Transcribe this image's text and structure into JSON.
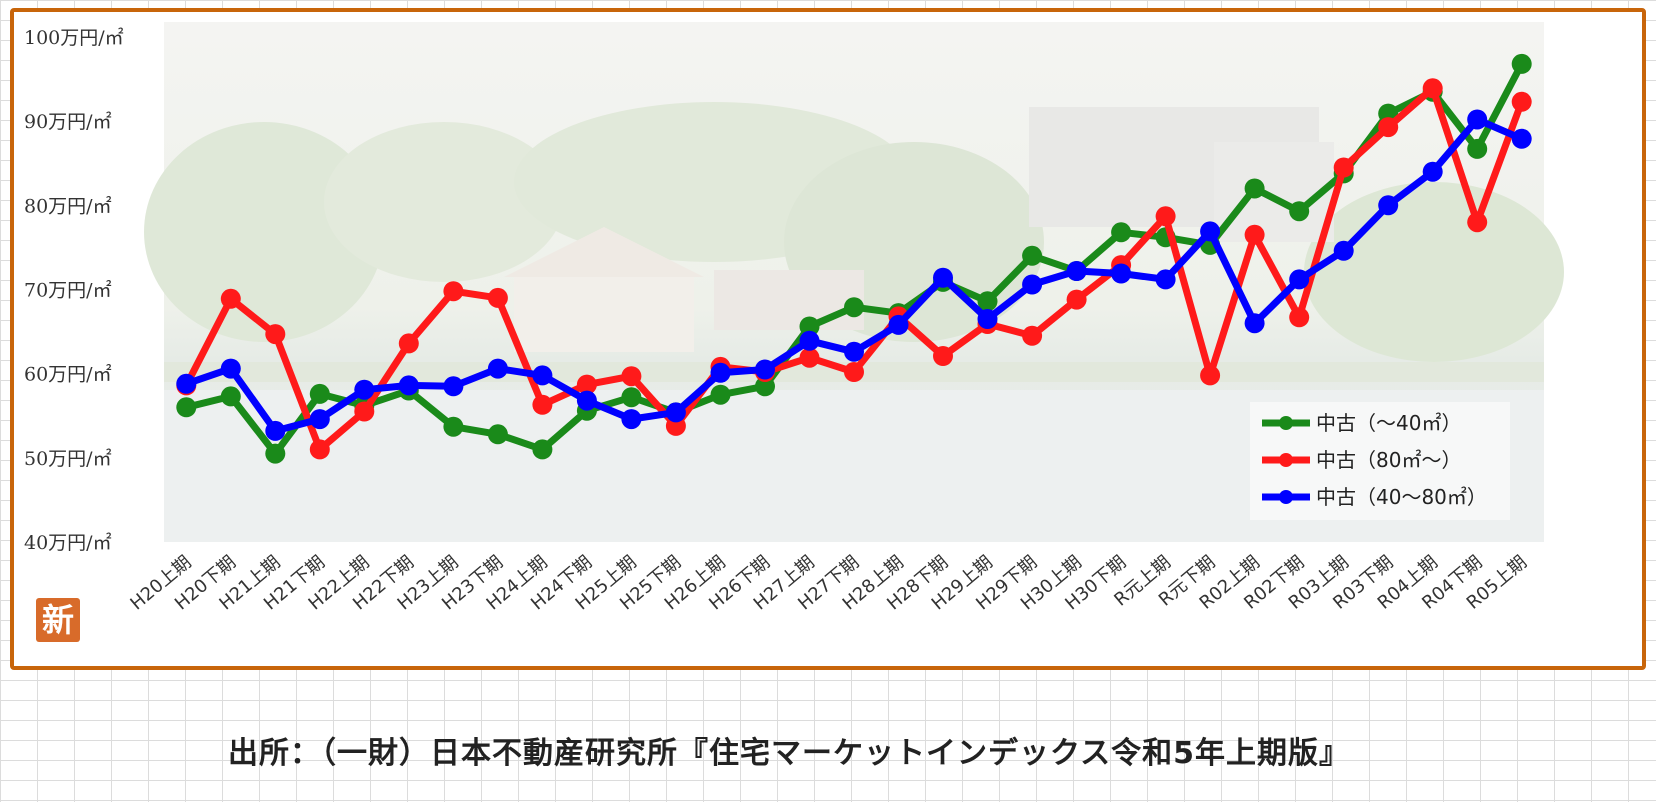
{
  "chart_data": {
    "type": "line",
    "y_unit_suffix": "万円/㎡",
    "ylim": [
      40,
      100
    ],
    "yticks": [
      40,
      50,
      60,
      70,
      80,
      90,
      100
    ],
    "ytick_labels": [
      "40万円/㎡",
      "50万円/㎡",
      "60万円/㎡",
      "70万円/㎡",
      "80万円/㎡",
      "90万円/㎡",
      "100万円/㎡"
    ],
    "categories": [
      "H20上期",
      "H20下期",
      "H21上期",
      "H21下期",
      "H22上期",
      "H22下期",
      "H23上期",
      "H23下期",
      "H24上期",
      "H24下期",
      "H25上期",
      "H25下期",
      "H26上期",
      "H26下期",
      "H27上期",
      "H27下期",
      "H28上期",
      "H28下期",
      "H29上期",
      "H29下期",
      "H30上期",
      "H30下期",
      "R元上期",
      "R元下期",
      "R02上期",
      "R02下期",
      "R03上期",
      "R03下期",
      "R04上期",
      "R04下期",
      "R05上期"
    ],
    "series": [
      {
        "name": "中古（～40㎡）",
        "color": "#1a8a1a",
        "values": [
          56.0,
          57.3,
          50.5,
          57.6,
          56.2,
          58.0,
          53.7,
          52.8,
          51.0,
          55.6,
          57.2,
          55.4,
          57.5,
          58.5,
          65.6,
          67.9,
          67.2,
          70.9,
          68.6,
          74.0,
          72.2,
          76.8,
          76.2,
          75.3,
          82.0,
          79.3,
          83.8,
          90.9,
          93.5,
          86.7,
          96.8
        ]
      },
      {
        "name": "中古（80㎡～）",
        "color": "#ff1a1a",
        "values": [
          58.6,
          68.9,
          64.7,
          51.0,
          55.5,
          63.6,
          69.8,
          69.0,
          56.3,
          58.7,
          59.7,
          53.8,
          60.8,
          60.2,
          61.9,
          60.2,
          66.8,
          62.1,
          65.9,
          64.5,
          68.8,
          72.9,
          78.7,
          59.8,
          76.5,
          66.7,
          84.5,
          89.3,
          93.9,
          78.0,
          92.3
        ]
      },
      {
        "name": "中古（40～80㎡）",
        "color": "#0000ff",
        "values": [
          58.8,
          60.6,
          53.2,
          54.6,
          58.1,
          58.6,
          58.5,
          60.6,
          59.8,
          56.8,
          54.6,
          55.4,
          60.1,
          60.5,
          63.9,
          62.6,
          65.8,
          71.4,
          66.5,
          70.6,
          72.2,
          71.9,
          71.2,
          76.9,
          66.0,
          71.2,
          74.6,
          80.0,
          84.0,
          90.2,
          87.9
        ]
      }
    ],
    "legend_position": "right"
  },
  "badge": {
    "text": "新"
  },
  "source_note": "出所：（一財）日本不動産研究所『住宅マーケットインデックス令和5年上期版』"
}
